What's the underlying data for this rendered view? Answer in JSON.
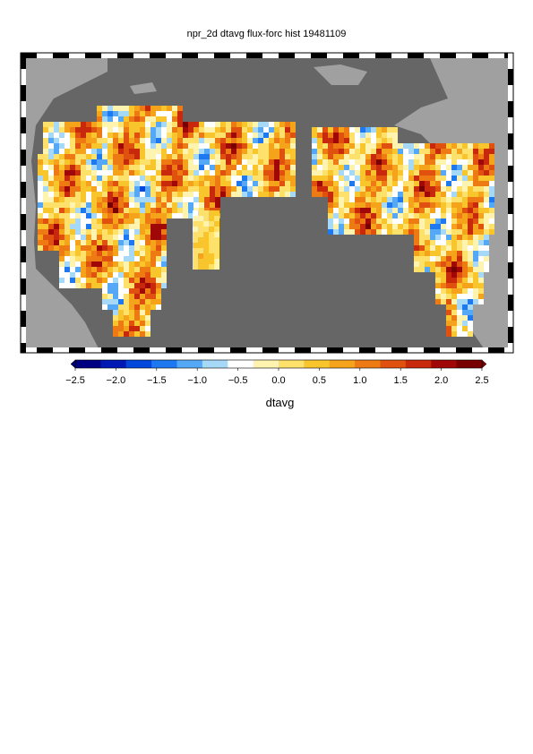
{
  "title": "npr_2d dtavg flux-forc hist 19481109",
  "colorbar": {
    "label": "dtavg",
    "ticks": [
      "−2.5",
      "−2.0",
      "−1.5",
      "−1.0",
      "−0.5",
      "0.0",
      "0.5",
      "1.0",
      "1.5",
      "2.0",
      "2.5"
    ],
    "range": [
      -2.5,
      2.5
    ],
    "colors": [
      "#000080",
      "#0018b4",
      "#0048dc",
      "#1e78f0",
      "#55a8f5",
      "#a6d8f8",
      "#ffffff",
      "#fff3b0",
      "#fde16a",
      "#f9c52c",
      "#f4a31a",
      "#ee7a14",
      "#e0500f",
      "#c8280c",
      "#a00808",
      "#780000"
    ]
  },
  "map": {
    "ocean_color": "#666666",
    "land_color": "#a0a0a0",
    "frame": "black-white checkered border"
  }
}
